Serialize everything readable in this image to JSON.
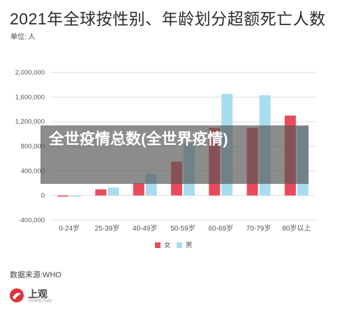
{
  "page": {
    "title": "2021年全球按性别、年龄划分超额死亡人数",
    "unit": "单位: 人",
    "overlay_text": "全世疫情总数(全世界疫情)",
    "source": "数据来源:WHO",
    "logo_text": "上观",
    "logo_sub": "Jiefang Daily",
    "colors": {
      "female": "#e84c5c",
      "male": "#a9dcf0",
      "grid": "#dddddd",
      "text": "#555555"
    }
  },
  "chart_data": {
    "type": "bar",
    "categories": [
      "0-24岁",
      "25-39岁",
      "40-49岁",
      "50-59岁",
      "60-69岁",
      "70-79岁",
      "80岁以上"
    ],
    "series": [
      {
        "name": "女",
        "values": [
          -10000,
          100000,
          200000,
          550000,
          1100000,
          1100000,
          1300000
        ]
      },
      {
        "name": "男",
        "values": [
          -10000,
          130000,
          350000,
          850000,
          1650000,
          1630000,
          1120000
        ]
      }
    ],
    "yticks": [
      "2,000,000",
      "1,600,000",
      "1,200,000",
      "800,000",
      "400,000",
      "0",
      "-400,000"
    ],
    "ylim": [
      -400000,
      2000000
    ],
    "grid": true,
    "legend": "bottom"
  }
}
